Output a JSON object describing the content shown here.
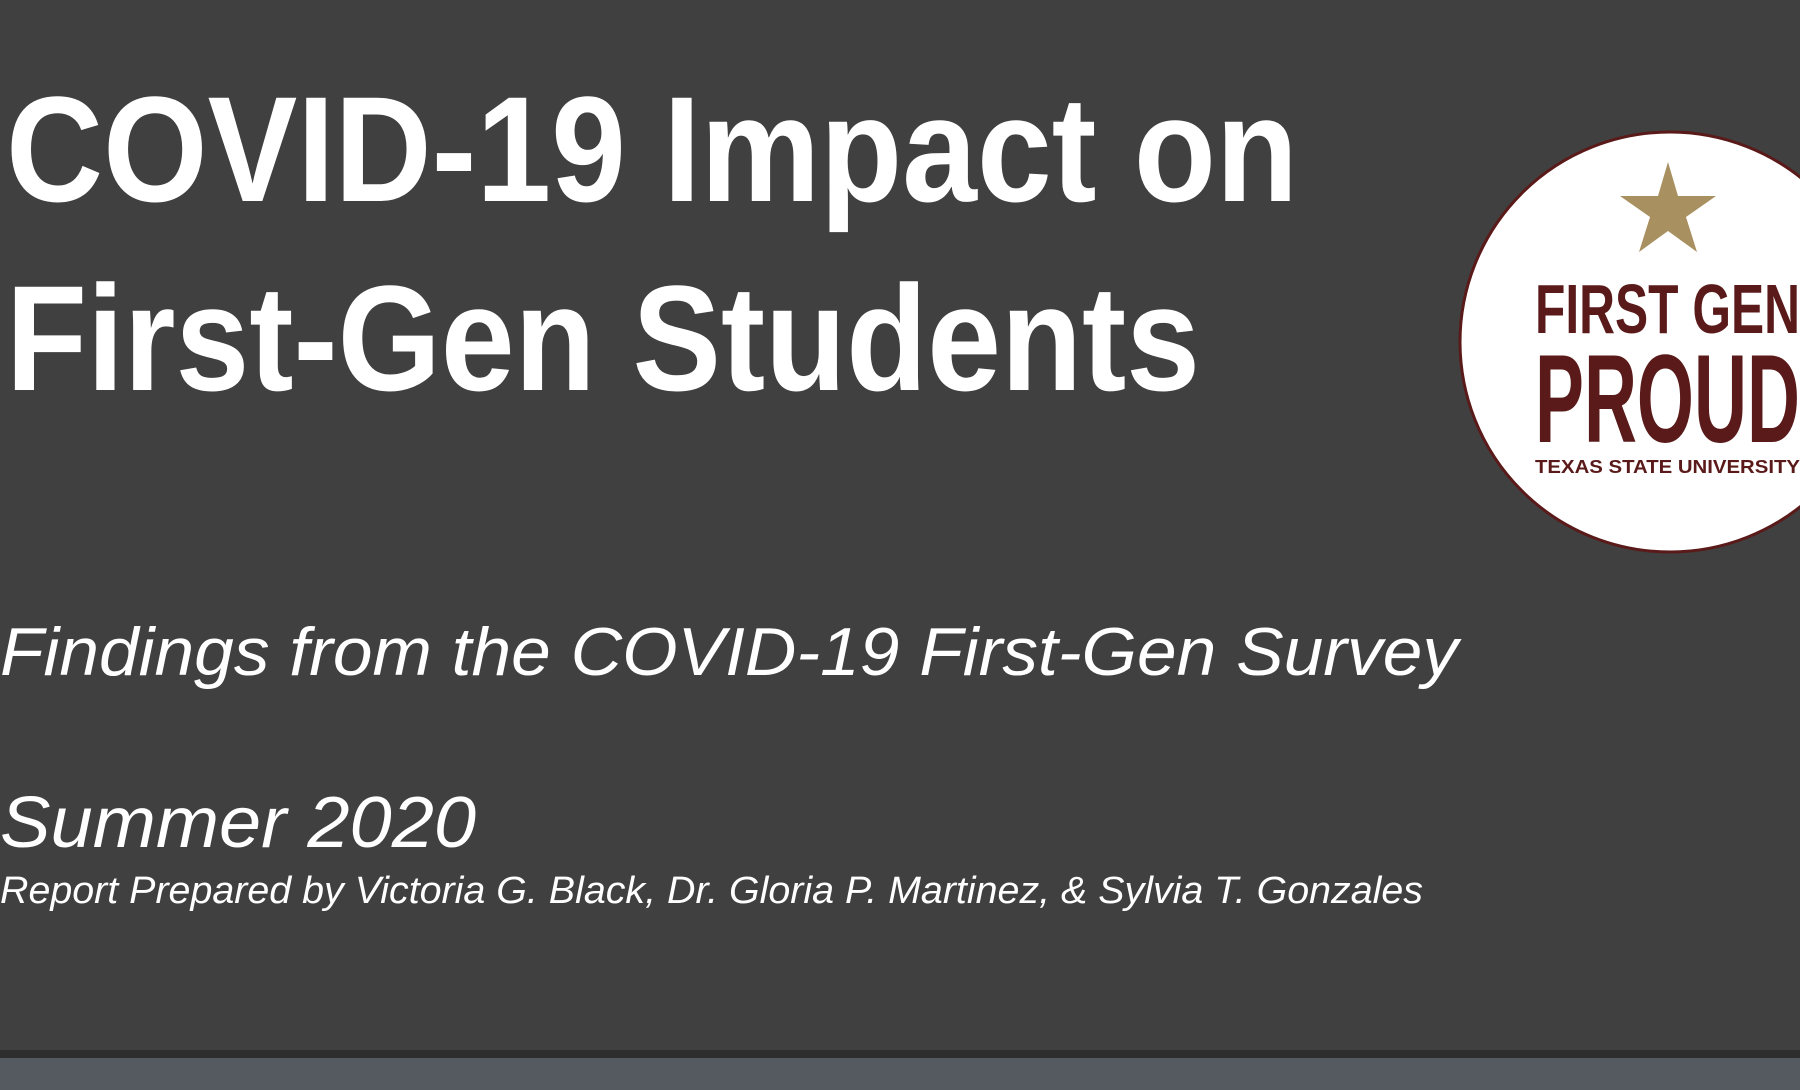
{
  "slide": {
    "title_lines": [
      "COVID-19 Impact on",
      "First-Gen Students"
    ],
    "subtitle": "Findings from the COVID-19 First-Gen Survey",
    "date": "Summer 2020",
    "authors": "Report Prepared by Victoria G. Black, Dr. Gloria P. Martinez, & Sylvia T. Gonzales",
    "logo": {
      "line1": "FIRST GEN",
      "line2": "PROUD",
      "line3": "TEXAS STATE UNIVERSITY"
    }
  }
}
